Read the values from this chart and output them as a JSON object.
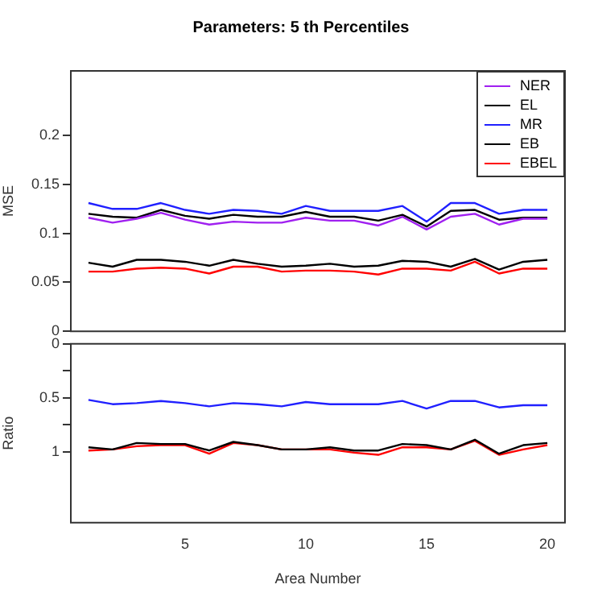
{
  "chart_data": [
    {
      "type": "line",
      "title": "Parameters:  5 th  Percentiles",
      "ylabel": "MSE",
      "x": [
        1,
        2,
        3,
        4,
        5,
        6,
        7,
        8,
        9,
        10,
        11,
        12,
        13,
        14,
        15,
        16,
        17,
        18,
        19,
        20
      ],
      "xlim": [
        0.27,
        20.73
      ],
      "xticks": [
        5,
        10,
        15,
        20
      ],
      "ylim": [
        0,
        0.266
      ],
      "yticks": [
        0,
        0.05,
        0.1,
        0.15,
        0.2
      ],
      "tick_labels": "y",
      "legend": "top right",
      "marker": "none",
      "grid": false,
      "series": [
        {
          "name": "NER",
          "color": "#a020f0",
          "values": [
            0.116,
            0.111,
            0.115,
            0.121,
            0.114,
            0.109,
            0.112,
            0.111,
            0.111,
            0.116,
            0.113,
            0.113,
            0.108,
            0.117,
            0.104,
            0.117,
            0.12,
            0.109,
            0.115,
            0.115
          ]
        },
        {
          "name": "EL",
          "color": "#000000",
          "values": [
            0.07,
            0.066,
            0.073,
            0.073,
            0.071,
            0.067,
            0.073,
            0.069,
            0.066,
            0.067,
            0.069,
            0.066,
            0.067,
            0.072,
            0.071,
            0.066,
            0.074,
            0.063,
            0.071,
            0.073
          ]
        },
        {
          "name": "MR",
          "color": "#2020ff",
          "values": [
            0.131,
            0.125,
            0.125,
            0.131,
            0.124,
            0.12,
            0.124,
            0.123,
            0.12,
            0.128,
            0.123,
            0.123,
            0.123,
            0.128,
            0.112,
            0.131,
            0.131,
            0.12,
            0.124,
            0.124
          ]
        },
        {
          "name": "EB",
          "color": "#000000",
          "values": [
            0.12,
            0.117,
            0.116,
            0.124,
            0.118,
            0.115,
            0.119,
            0.117,
            0.117,
            0.122,
            0.117,
            0.117,
            0.113,
            0.119,
            0.107,
            0.123,
            0.124,
            0.114,
            0.116,
            0.116
          ]
        },
        {
          "name": "EBEL",
          "color": "#ff0000",
          "values": [
            0.061,
            0.061,
            0.064,
            0.065,
            0.064,
            0.059,
            0.066,
            0.066,
            0.061,
            0.062,
            0.062,
            0.061,
            0.058,
            0.064,
            0.064,
            0.062,
            0.071,
            0.059,
            0.064,
            0.064
          ]
        }
      ]
    },
    {
      "type": "line",
      "xlabel": "Area Number",
      "ylabel": "Ratio",
      "x": [
        1,
        2,
        3,
        4,
        5,
        6,
        7,
        8,
        9,
        10,
        11,
        12,
        13,
        14,
        15,
        16,
        17,
        18,
        19,
        20
      ],
      "xlim": [
        0.27,
        20.73
      ],
      "xticks": [
        5,
        10,
        15,
        20
      ],
      "ylim": [
        1.66,
        0
      ],
      "yticks": [
        0,
        {
          "value": 0.25,
          "label": null
        },
        0.5,
        {
          "value": 0.75,
          "label": null
        },
        1
      ],
      "marker": "none",
      "grid": false,
      "series": [
        {
          "color": "#2020ff",
          "values": [
            0.52,
            0.56,
            0.55,
            0.53,
            0.55,
            0.58,
            0.55,
            0.56,
            0.58,
            0.54,
            0.56,
            0.56,
            0.56,
            0.53,
            0.6,
            0.53,
            0.53,
            0.59,
            0.57,
            0.57
          ]
        },
        {
          "color": "#000000",
          "values": [
            0.96,
            0.98,
            0.92,
            0.93,
            0.93,
            0.99,
            0.91,
            0.94,
            0.98,
            0.98,
            0.96,
            0.99,
            0.99,
            0.93,
            0.94,
            0.98,
            0.89,
            1.02,
            0.94,
            0.92
          ]
        },
        {
          "color": "#ff0000",
          "values": [
            0.99,
            0.98,
            0.95,
            0.94,
            0.94,
            1.02,
            0.92,
            0.94,
            0.98,
            0.98,
            0.98,
            1.01,
            1.03,
            0.96,
            0.96,
            0.98,
            0.9,
            1.03,
            0.98,
            0.94
          ]
        }
      ]
    }
  ]
}
